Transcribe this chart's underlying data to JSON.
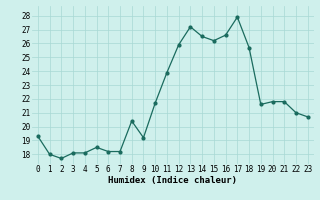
{
  "x": [
    0,
    1,
    2,
    3,
    4,
    5,
    6,
    7,
    8,
    9,
    10,
    11,
    12,
    13,
    14,
    15,
    16,
    17,
    18,
    19,
    20,
    21,
    22,
    23
  ],
  "y": [
    19.3,
    18.0,
    17.7,
    18.1,
    18.1,
    18.5,
    18.2,
    18.2,
    20.4,
    19.2,
    21.7,
    23.9,
    25.9,
    27.2,
    26.5,
    26.2,
    26.6,
    27.9,
    25.7,
    21.6,
    21.8,
    21.8,
    21.0,
    20.7
  ],
  "line_color": "#1a6b5e",
  "marker": "o",
  "markersize": 2.0,
  "linewidth": 0.9,
  "xlabel": "Humidex (Indice chaleur)",
  "xlim": [
    -0.5,
    23.5
  ],
  "ylim": [
    17.3,
    28.7
  ],
  "yticks": [
    18,
    19,
    20,
    21,
    22,
    23,
    24,
    25,
    26,
    27,
    28
  ],
  "xticks": [
    0,
    1,
    2,
    3,
    4,
    5,
    6,
    7,
    8,
    9,
    10,
    11,
    12,
    13,
    14,
    15,
    16,
    17,
    18,
    19,
    20,
    21,
    22,
    23
  ],
  "bg_color": "#cff0ec",
  "grid_color": "#a8d8d4",
  "label_fontsize": 6.5,
  "tick_fontsize": 5.5
}
